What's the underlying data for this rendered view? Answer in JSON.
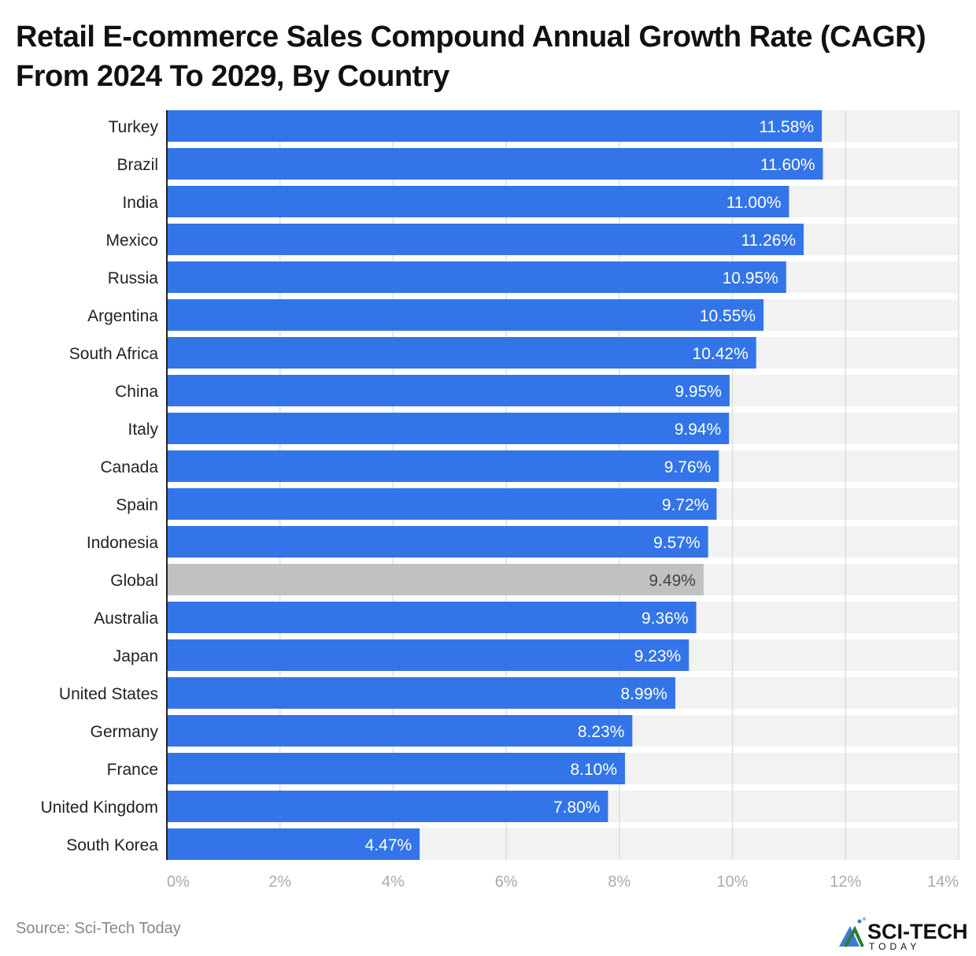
{
  "chart_data": {
    "type": "bar",
    "orientation": "horizontal",
    "title": "Retail E-commerce Sales Compound Annual Growth Rate (CAGR) From 2024 To 2029, By Country",
    "categories": [
      "Turkey",
      "Brazil",
      "India",
      "Mexico",
      "Russia",
      "Argentina",
      "South Africa",
      "China",
      "Italy",
      "Canada",
      "Spain",
      "Indonesia",
      "Global",
      "Australia",
      "Japan",
      "United States",
      "Germany",
      "France",
      "United Kingdom",
      "South Korea"
    ],
    "values": [
      11.58,
      11.6,
      11.0,
      11.26,
      10.95,
      10.55,
      10.42,
      9.95,
      9.94,
      9.76,
      9.72,
      9.57,
      9.49,
      9.36,
      9.23,
      8.99,
      8.23,
      8.1,
      7.8,
      4.47
    ],
    "value_labels": [
      "11.58%",
      "11.60%",
      "11.00%",
      "11.26%",
      "10.95%",
      "10.55%",
      "10.42%",
      "9.95%",
      "9.94%",
      "9.76%",
      "9.72%",
      "9.57%",
      "9.49%",
      "9.36%",
      "9.23%",
      "8.99%",
      "8.23%",
      "8.10%",
      "7.80%",
      "4.47%"
    ],
    "highlight_category": "Global",
    "xlim": [
      0,
      14
    ],
    "x_ticks": [
      "0%",
      "2%",
      "4%",
      "6%",
      "8%",
      "10%",
      "12%",
      "14%"
    ],
    "grid": true,
    "colors": {
      "bar": "#3375e8",
      "highlight": "#c0c1c3",
      "track": "#f2f2f2"
    }
  },
  "source": "Source: Sci-Tech Today",
  "logo": {
    "text": "SCI-TECH",
    "subtext": "TODAY"
  }
}
